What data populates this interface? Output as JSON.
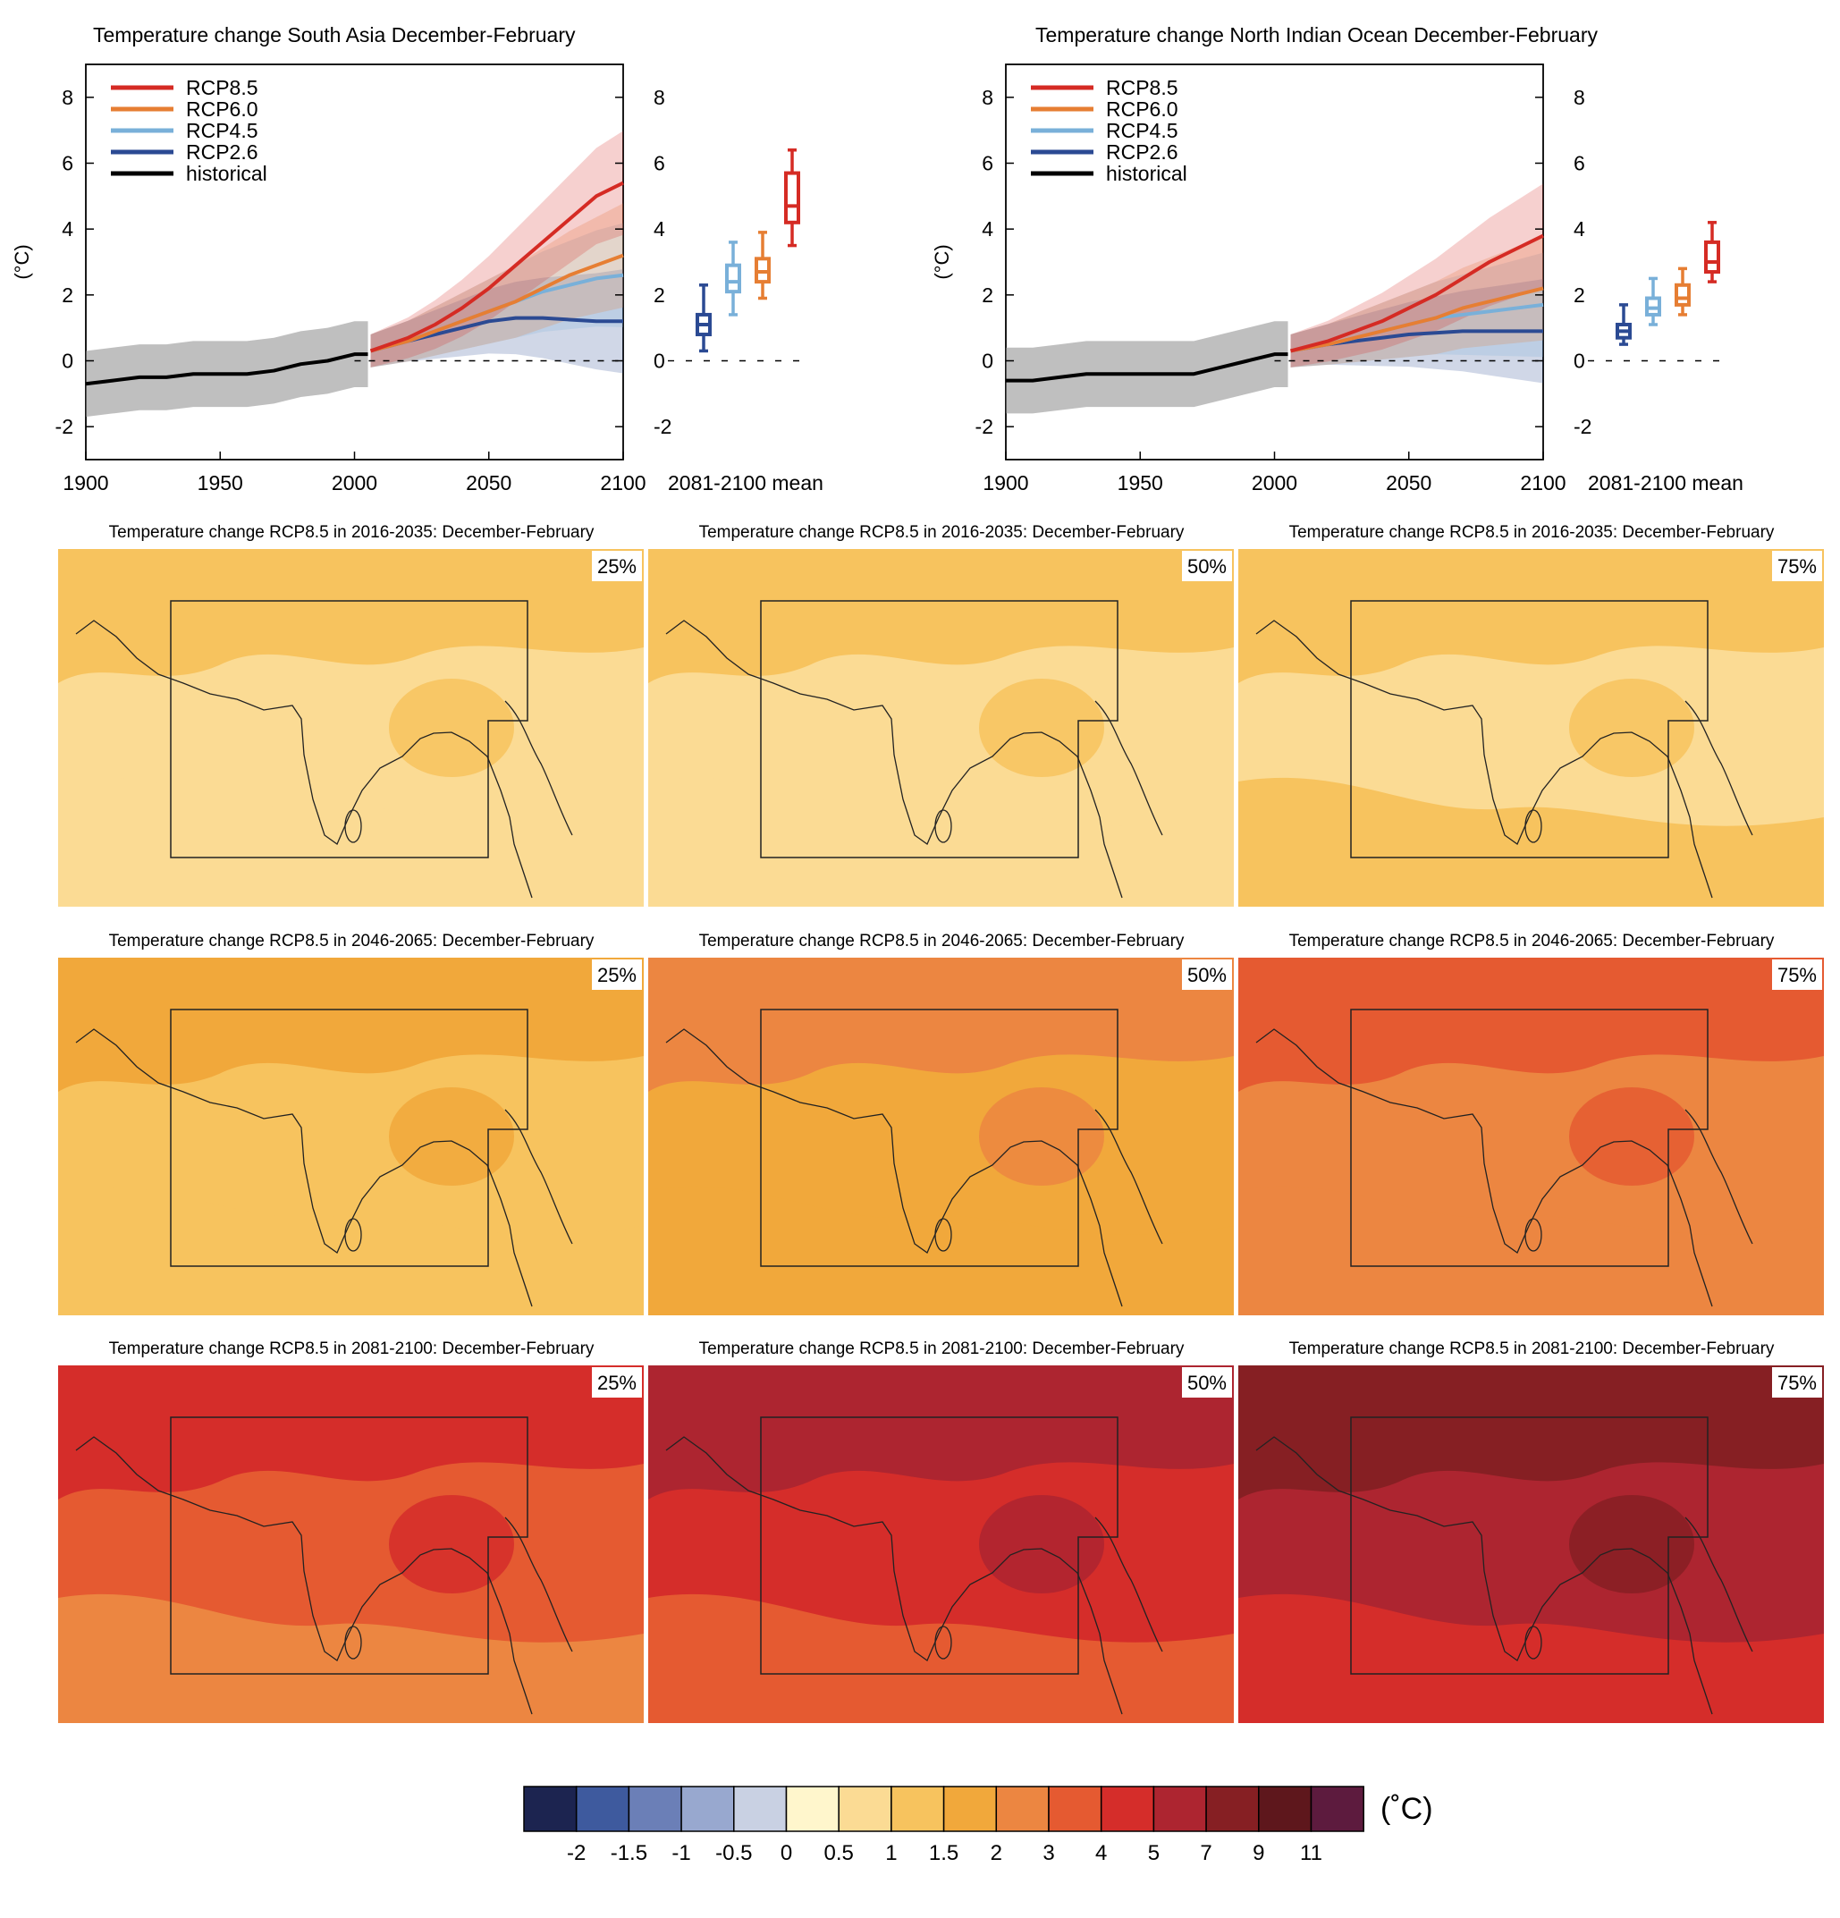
{
  "chart_data": [
    {
      "type": "line",
      "title": "Temperature change South Asia December-February",
      "ylabel": "(°C)",
      "xlim": [
        1900,
        2100
      ],
      "ylim": [
        -3,
        9
      ],
      "x_ticks": [
        "1900",
        "1950",
        "2000",
        "2050",
        "2100"
      ],
      "y_ticks": [
        "-2",
        "0",
        "2",
        "4",
        "6",
        "8"
      ],
      "right_panel_label": "2081-2100 mean",
      "legend": [
        "RCP8.5",
        "RCP6.0",
        "RCP4.5",
        "RCP2.6",
        "historical"
      ],
      "series": [
        {
          "name": "historical",
          "color": "#000000",
          "x": [
            1900,
            1910,
            1920,
            1930,
            1940,
            1950,
            1960,
            1970,
            1980,
            1990,
            2000,
            2005
          ],
          "y": [
            -0.7,
            -0.6,
            -0.5,
            -0.5,
            -0.4,
            -0.4,
            -0.4,
            -0.3,
            -0.1,
            0.0,
            0.2,
            0.2
          ]
        },
        {
          "name": "RCP2.6",
          "color": "#2b4a93",
          "x": [
            2006,
            2020,
            2030,
            2040,
            2050,
            2060,
            2070,
            2080,
            2090,
            2100
          ],
          "y": [
            0.3,
            0.6,
            0.8,
            1.0,
            1.2,
            1.3,
            1.3,
            1.25,
            1.2,
            1.2
          ]
        },
        {
          "name": "RCP4.5",
          "color": "#79b0d9",
          "x": [
            2006,
            2020,
            2030,
            2040,
            2050,
            2060,
            2070,
            2080,
            2090,
            2100
          ],
          "y": [
            0.3,
            0.6,
            0.9,
            1.2,
            1.5,
            1.8,
            2.1,
            2.3,
            2.5,
            2.6
          ]
        },
        {
          "name": "RCP6.0",
          "color": "#e67e33",
          "x": [
            2006,
            2020,
            2030,
            2040,
            2050,
            2060,
            2070,
            2080,
            2090,
            2100
          ],
          "y": [
            0.3,
            0.6,
            0.9,
            1.2,
            1.5,
            1.8,
            2.2,
            2.6,
            2.9,
            3.2
          ]
        },
        {
          "name": "RCP8.5",
          "color": "#d52b24",
          "x": [
            2006,
            2020,
            2030,
            2040,
            2050,
            2060,
            2070,
            2080,
            2090,
            2100
          ],
          "y": [
            0.3,
            0.7,
            1.1,
            1.6,
            2.2,
            2.9,
            3.6,
            4.3,
            5.0,
            5.4
          ]
        }
      ],
      "box_2081_2100": [
        {
          "name": "RCP2.6",
          "color": "#2b4a93",
          "min": 0.3,
          "q1": 0.8,
          "median": 1.1,
          "q3": 1.4,
          "max": 2.3
        },
        {
          "name": "RCP4.5",
          "color": "#79b0d9",
          "min": 1.4,
          "q1": 2.1,
          "median": 2.4,
          "q3": 2.9,
          "max": 3.6
        },
        {
          "name": "RCP6.0",
          "color": "#e67e33",
          "min": 1.9,
          "q1": 2.4,
          "median": 2.7,
          "q3": 3.1,
          "max": 3.9
        },
        {
          "name": "RCP8.5",
          "color": "#d52b24",
          "min": 3.5,
          "q1": 4.2,
          "median": 4.7,
          "q3": 5.7,
          "max": 6.4
        }
      ]
    },
    {
      "type": "line",
      "title": "Temperature change North Indian Ocean December-February",
      "ylabel": "(°C)",
      "xlim": [
        1900,
        2100
      ],
      "ylim": [
        -3,
        9
      ],
      "x_ticks": [
        "1900",
        "1950",
        "2000",
        "2050",
        "2100"
      ],
      "y_ticks": [
        "-2",
        "0",
        "2",
        "4",
        "6",
        "8"
      ],
      "right_panel_label": "2081-2100 mean",
      "legend": [
        "RCP8.5",
        "RCP6.0",
        "RCP4.5",
        "RCP2.6",
        "historical"
      ],
      "series": [
        {
          "name": "historical",
          "color": "#000000",
          "x": [
            1900,
            1910,
            1920,
            1930,
            1940,
            1950,
            1960,
            1970,
            1980,
            1990,
            2000,
            2005
          ],
          "y": [
            -0.6,
            -0.6,
            -0.5,
            -0.4,
            -0.4,
            -0.4,
            -0.4,
            -0.4,
            -0.2,
            0.0,
            0.2,
            0.2
          ]
        },
        {
          "name": "RCP2.6",
          "color": "#2b4a93",
          "x": [
            2006,
            2020,
            2030,
            2040,
            2050,
            2060,
            2070,
            2080,
            2090,
            2100
          ],
          "y": [
            0.3,
            0.5,
            0.6,
            0.7,
            0.8,
            0.85,
            0.9,
            0.9,
            0.9,
            0.9
          ]
        },
        {
          "name": "RCP4.5",
          "color": "#79b0d9",
          "x": [
            2006,
            2020,
            2030,
            2040,
            2050,
            2060,
            2070,
            2080,
            2090,
            2100
          ],
          "y": [
            0.3,
            0.5,
            0.7,
            0.9,
            1.1,
            1.3,
            1.4,
            1.5,
            1.6,
            1.7
          ]
        },
        {
          "name": "RCP6.0",
          "color": "#e67e33",
          "x": [
            2006,
            2020,
            2030,
            2040,
            2050,
            2060,
            2070,
            2080,
            2090,
            2100
          ],
          "y": [
            0.3,
            0.5,
            0.7,
            0.9,
            1.1,
            1.3,
            1.6,
            1.8,
            2.0,
            2.2
          ]
        },
        {
          "name": "RCP8.5",
          "color": "#d52b24",
          "x": [
            2006,
            2020,
            2030,
            2040,
            2050,
            2060,
            2070,
            2080,
            2090,
            2100
          ],
          "y": [
            0.3,
            0.6,
            0.9,
            1.2,
            1.6,
            2.0,
            2.5,
            3.0,
            3.4,
            3.8
          ]
        }
      ],
      "box_2081_2100": [
        {
          "name": "RCP2.6",
          "color": "#2b4a93",
          "min": 0.5,
          "q1": 0.7,
          "median": 0.9,
          "q3": 1.1,
          "max": 1.7
        },
        {
          "name": "RCP4.5",
          "color": "#79b0d9",
          "min": 1.1,
          "q1": 1.4,
          "median": 1.6,
          "q3": 1.9,
          "max": 2.5
        },
        {
          "name": "RCP6.0",
          "color": "#e67e33",
          "min": 1.4,
          "q1": 1.7,
          "median": 1.9,
          "q3": 2.3,
          "max": 2.8
        },
        {
          "name": "RCP8.5",
          "color": "#d52b24",
          "min": 2.4,
          "q1": 2.7,
          "median": 3.0,
          "q3": 3.6,
          "max": 4.2
        }
      ]
    }
  ],
  "maps": {
    "rows": [
      {
        "title": "Temperature change RCP8.5 in 2016-2035: December-February",
        "levels": [
          [
            1,
            2,
            1
          ],
          [
            1,
            2,
            1
          ],
          [
            1,
            2,
            2
          ]
        ],
        "panels": [
          "25%",
          "50%",
          "75%"
        ]
      },
      {
        "title": "Temperature change RCP8.5 in 2046-2065: December-February",
        "levels": [
          [
            2,
            3,
            2
          ],
          [
            3,
            4,
            3
          ],
          [
            4,
            5,
            4
          ]
        ],
        "panels": [
          "25%",
          "50%",
          "75%"
        ]
      },
      {
        "title": "Temperature change RCP8.5 in 2081-2100: December-February",
        "levels": [
          [
            5,
            6,
            4
          ],
          [
            6,
            7,
            5
          ],
          [
            7,
            8,
            6
          ]
        ],
        "panels": [
          "25%",
          "50%",
          "75%"
        ]
      }
    ]
  },
  "colorbar": {
    "unit": "(˚C)",
    "colors": [
      "#1c2450",
      "#3e5a9e",
      "#6b7fb7",
      "#98a8cf",
      "#c9d1e3",
      "#fff6cc",
      "#fbdb94",
      "#f7c35e",
      "#f1a83b",
      "#ec8641",
      "#e55a31",
      "#d52d2a",
      "#ad2530",
      "#861f23",
      "#5e171c",
      "#5d1b3e"
    ],
    "ticks": [
      "-2",
      "-1.5",
      "-1",
      "-0.5",
      "0",
      "0.5",
      "1",
      "1.5",
      "2",
      "3",
      "4",
      "5",
      "7",
      "9",
      "11"
    ]
  }
}
